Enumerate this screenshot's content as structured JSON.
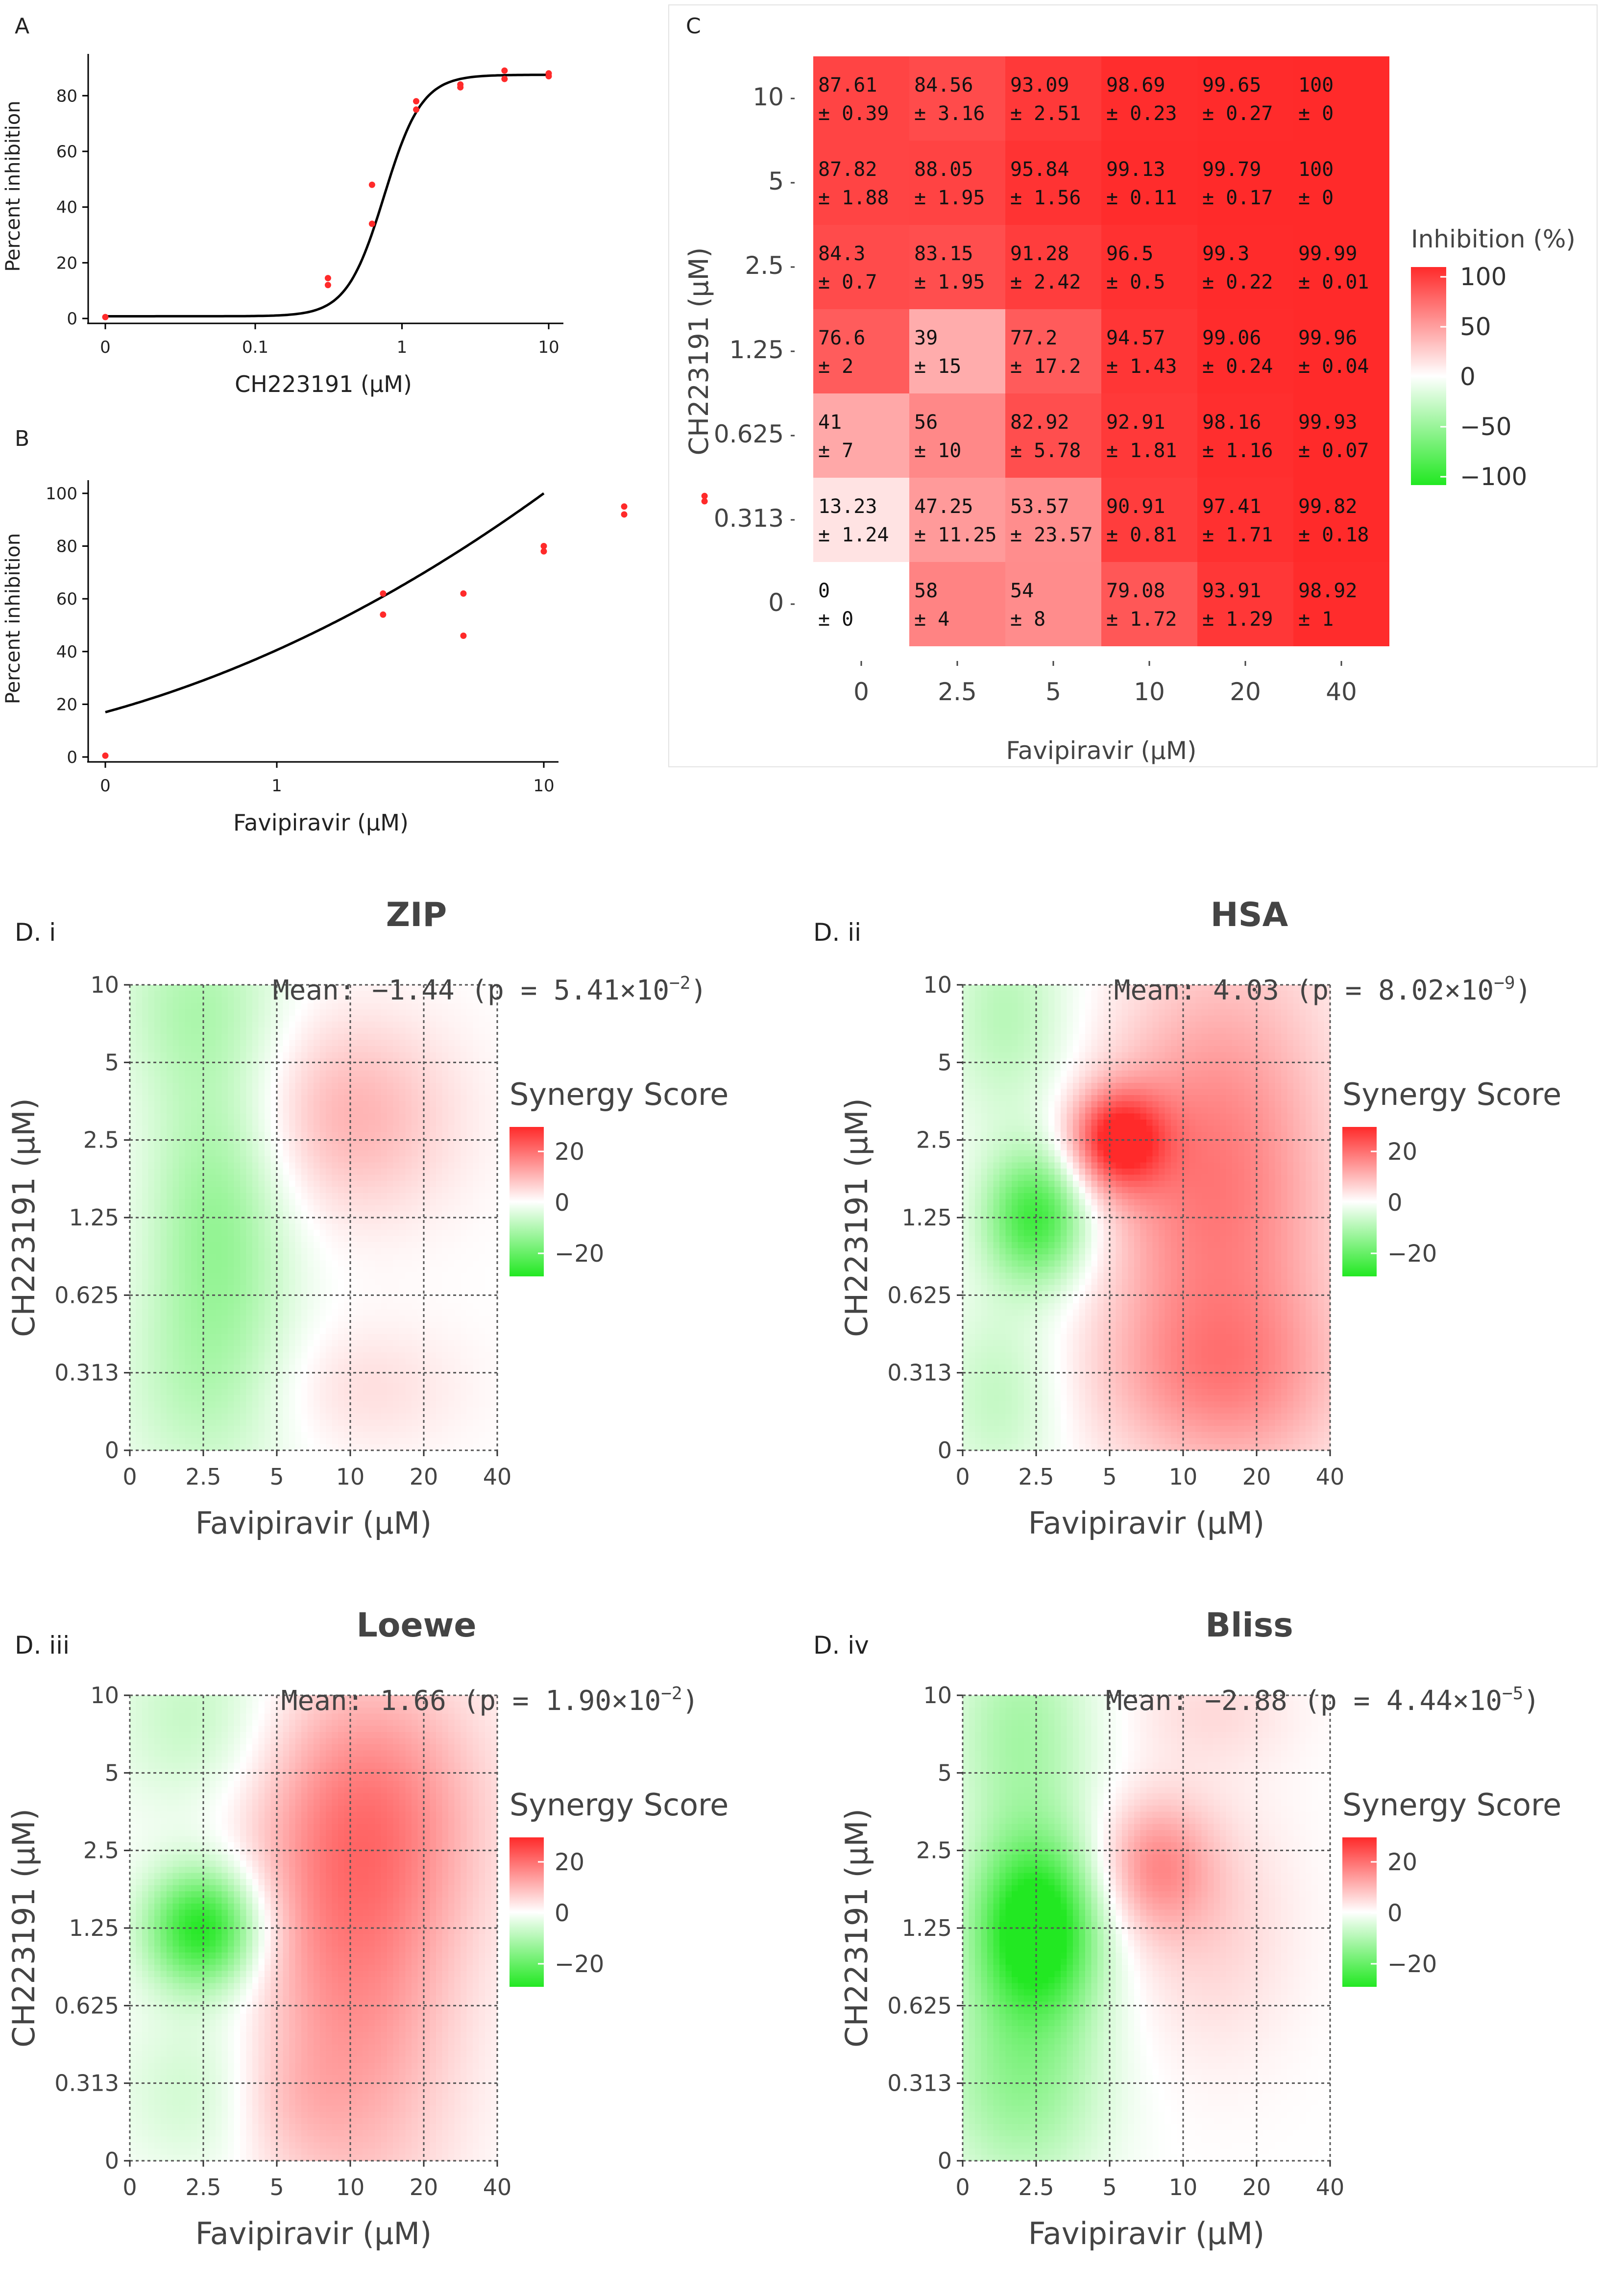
{
  "labels": {
    "A": "A",
    "B": "B",
    "C": "C",
    "Di": "D. i",
    "Dii": "D. ii",
    "Diii": "D. iii",
    "Div": "D. iv"
  },
  "colors": {
    "red": "#ff2a2a",
    "green": "#22e822",
    "curve": "#000000",
    "grid": "#555555"
  },
  "chart_data": [
    {
      "id": "A",
      "type": "scatter",
      "xlabel": "CH223191 (µM)",
      "ylabel": "Percent inhibition",
      "x_scale": "log",
      "x_ticks": [
        "0",
        "0.1",
        "1",
        "10"
      ],
      "y_ticks": [
        "0",
        "20",
        "40",
        "60",
        "80"
      ],
      "points": [
        {
          "x": 0,
          "y": 0.5
        },
        {
          "x": 0.313,
          "y": 12
        },
        {
          "x": 0.313,
          "y": 14.5
        },
        {
          "x": 0.625,
          "y": 34
        },
        {
          "x": 0.625,
          "y": 48
        },
        {
          "x": 1.25,
          "y": 75
        },
        {
          "x": 1.25,
          "y": 78
        },
        {
          "x": 2.5,
          "y": 83
        },
        {
          "x": 2.5,
          "y": 84
        },
        {
          "x": 5,
          "y": 86
        },
        {
          "x": 5,
          "y": 89
        },
        {
          "x": 10,
          "y": 87
        },
        {
          "x": 10,
          "y": 88
        }
      ],
      "fit": {
        "bottom": 0.8,
        "top": 87.5,
        "ec50": 0.65,
        "hill": 3.2
      }
    },
    {
      "id": "B",
      "type": "scatter",
      "xlabel": "Favipiravir (µM)",
      "ylabel": "Percent inhibition",
      "x_scale": "log",
      "x_ticks": [
        "0",
        "1",
        "10"
      ],
      "y_ticks": [
        "0",
        "20",
        "40",
        "60",
        "80",
        "100"
      ],
      "points": [
        {
          "x": 0,
          "y": 0.5
        },
        {
          "x": 2.5,
          "y": 54
        },
        {
          "x": 2.5,
          "y": 62
        },
        {
          "x": 5,
          "y": 46
        },
        {
          "x": 5,
          "y": 62
        },
        {
          "x": 10,
          "y": 78
        },
        {
          "x": 10,
          "y": 80
        },
        {
          "x": 20,
          "y": 92
        },
        {
          "x": 20,
          "y": 95
        },
        {
          "x": 40,
          "y": 97
        },
        {
          "x": 40,
          "y": 99
        }
      ],
      "fit": {
        "at_x0": 17,
        "at_x40": 100
      }
    },
    {
      "id": "C",
      "type": "heatmap",
      "xlabel": "Favipiravir (µM)",
      "ylabel": "CH223191 (µM)",
      "x_categories": [
        "0",
        "2.5",
        "5",
        "10",
        "20",
        "40"
      ],
      "y_categories": [
        "10",
        "5",
        "2.5",
        "1.25",
        "0.625",
        "0.313",
        "0"
      ],
      "legend_title": "Inhibition (%)",
      "legend_ticks": [
        "100",
        "50",
        "0",
        "−50",
        "−100"
      ],
      "cells": [
        [
          [
            "87.61",
            "± 0.39"
          ],
          [
            "84.56",
            "± 3.16"
          ],
          [
            "93.09",
            "± 2.51"
          ],
          [
            "98.69",
            "± 0.23"
          ],
          [
            "99.65",
            "± 0.27"
          ],
          [
            "100",
            "± 0"
          ]
        ],
        [
          [
            "87.82",
            "± 1.88"
          ],
          [
            "88.05",
            "± 1.95"
          ],
          [
            "95.84",
            "± 1.56"
          ],
          [
            "99.13",
            "± 0.11"
          ],
          [
            "99.79",
            "± 0.17"
          ],
          [
            "100",
            "± 0"
          ]
        ],
        [
          [
            "84.3",
            "± 0.7"
          ],
          [
            "83.15",
            "± 1.95"
          ],
          [
            "91.28",
            "± 2.42"
          ],
          [
            "96.5",
            "± 0.5"
          ],
          [
            "99.3",
            "± 0.22"
          ],
          [
            "99.99",
            "± 0.01"
          ]
        ],
        [
          [
            "76.6",
            "± 2"
          ],
          [
            "39",
            "± 15"
          ],
          [
            "77.2",
            "± 17.2"
          ],
          [
            "94.57",
            "± 1.43"
          ],
          [
            "99.06",
            "± 0.24"
          ],
          [
            "99.96",
            "± 0.04"
          ]
        ],
        [
          [
            "41",
            "± 7"
          ],
          [
            "56",
            "± 10"
          ],
          [
            "82.92",
            "± 5.78"
          ],
          [
            "92.91",
            "± 1.81"
          ],
          [
            "98.16",
            "± 1.16"
          ],
          [
            "99.93",
            "± 0.07"
          ]
        ],
        [
          [
            "13.23",
            "± 1.24"
          ],
          [
            "47.25",
            "± 11.25"
          ],
          [
            "53.57",
            "± 23.57"
          ],
          [
            "90.91",
            "± 0.81"
          ],
          [
            "97.41",
            "± 1.71"
          ],
          [
            "99.82",
            "± 0.18"
          ]
        ],
        [
          [
            "0",
            "± 0"
          ],
          [
            "58",
            "± 4"
          ],
          [
            "54",
            "± 8"
          ],
          [
            "79.08",
            "± 1.72"
          ],
          [
            "93.91",
            "± 1.29"
          ],
          [
            "98.92",
            "± 1"
          ]
        ]
      ]
    },
    {
      "id": "Di",
      "type": "heatmap",
      "title": "ZIP",
      "mean_text": "Mean: −1.44 (p = 5.41×10",
      "mean_exp": "−2",
      "mean_close": ")",
      "xlabel": "Favipiravir (µM)",
      "ylabel": "CH223191 (µM)",
      "x_ticks": [
        "0",
        "2.5",
        "5",
        "10",
        "20",
        "40"
      ],
      "y_ticks": [
        "10",
        "5",
        "2.5",
        "1.25",
        "0.625",
        "0.313",
        "0"
      ],
      "legend_title": "Synergy Score",
      "legend_ticks": [
        "20",
        "0",
        "−20"
      ],
      "blobs": [
        {
          "x": 1.2,
          "y": 3.0,
          "v": -12,
          "sx": 0.7,
          "sy": 1.4
        },
        {
          "x": 0.9,
          "y": 5.8,
          "v": -8,
          "sx": 0.8,
          "sy": 0.9
        },
        {
          "x": 1.0,
          "y": 0.7,
          "v": -6,
          "sx": 0.9,
          "sy": 1.0
        },
        {
          "x": 3.0,
          "y": 4.3,
          "v": 9,
          "sx": 1.0,
          "sy": 0.9
        },
        {
          "x": 3.1,
          "y": 0.8,
          "v": 4,
          "sx": 1.0,
          "sy": 0.6
        }
      ]
    },
    {
      "id": "Dii",
      "type": "heatmap",
      "title": "HSA",
      "mean_text": "Mean: 4.03 (p = 8.02×10",
      "mean_exp": "−9",
      "mean_close": ")",
      "xlabel": "Favipiravir (µM)",
      "ylabel": "CH223191 (µM)",
      "x_ticks": [
        "0",
        "2.5",
        "5",
        "10",
        "20",
        "40"
      ],
      "y_ticks": [
        "10",
        "5",
        "2.5",
        "1.25",
        "0.625",
        "0.313",
        "0"
      ],
      "legend_title": "Synergy Score",
      "legend_ticks": [
        "20",
        "0",
        "−20"
      ],
      "blobs": [
        {
          "x": 1.0,
          "y": 3.0,
          "v": -22,
          "sx": 0.5,
          "sy": 0.6
        },
        {
          "x": 0.6,
          "y": 5.6,
          "v": -8,
          "sx": 0.6,
          "sy": 1.0
        },
        {
          "x": 0.5,
          "y": 0.7,
          "v": -7,
          "sx": 0.6,
          "sy": 0.9
        },
        {
          "x": 2.1,
          "y": 4.0,
          "v": 24,
          "sx": 0.45,
          "sy": 0.45
        },
        {
          "x": 3.1,
          "y": 3.5,
          "v": 12,
          "sx": 0.9,
          "sy": 1.8
        },
        {
          "x": 3.4,
          "y": 0.9,
          "v": 9,
          "sx": 1.2,
          "sy": 0.8
        },
        {
          "x": 4.2,
          "y": 3.2,
          "v": 7,
          "sx": 0.9,
          "sy": 2.5
        }
      ]
    },
    {
      "id": "Diii",
      "type": "heatmap",
      "title": "Loewe",
      "mean_text": "Mean: 1.66 (p = 1.90×10",
      "mean_exp": "−2",
      "mean_close": ")",
      "xlabel": "Favipiravir (µM)",
      "ylabel": "CH223191 (µM)",
      "x_ticks": [
        "0",
        "2.5",
        "5",
        "10",
        "20",
        "40"
      ],
      "y_ticks": [
        "10",
        "5",
        "2.5",
        "1.25",
        "0.625",
        "0.313",
        "0"
      ],
      "legend_title": "Synergy Score",
      "legend_ticks": [
        "20",
        "0",
        "−20"
      ],
      "blobs": [
        {
          "x": 1.0,
          "y": 3.0,
          "v": -26,
          "sx": 0.55,
          "sy": 0.55
        },
        {
          "x": 0.9,
          "y": 5.7,
          "v": -7,
          "sx": 0.8,
          "sy": 0.9
        },
        {
          "x": 1.2,
          "y": 0.9,
          "v": -7,
          "sx": 0.9,
          "sy": 0.8
        },
        {
          "x": 3.0,
          "y": 2.0,
          "v": 12,
          "sx": 1.0,
          "sy": 2.0
        },
        {
          "x": 3.3,
          "y": 4.5,
          "v": 12,
          "sx": 1.1,
          "sy": 1.3
        },
        {
          "x": 2.0,
          "y": 0.8,
          "v": 5,
          "sx": 0.6,
          "sy": 0.6
        }
      ]
    },
    {
      "id": "Div",
      "type": "heatmap",
      "title": "Bliss",
      "mean_text": "Mean: −2.88 (p = 4.44×10",
      "mean_exp": "−5",
      "mean_close": ")",
      "xlabel": "Favipiravir (µM)",
      "ylabel": "CH223191 (µM)",
      "x_ticks": [
        "0",
        "2.5",
        "5",
        "10",
        "20",
        "40"
      ],
      "y_ticks": [
        "10",
        "5",
        "2.5",
        "1.25",
        "0.625",
        "0.313",
        "0"
      ],
      "legend_title": "Synergy Score",
      "legend_ticks": [
        "20",
        "0",
        "−20"
      ],
      "blobs": [
        {
          "x": 1.0,
          "y": 3.0,
          "v": -30,
          "sx": 0.6,
          "sy": 0.8
        },
        {
          "x": 0.8,
          "y": 5.5,
          "v": -10,
          "sx": 0.7,
          "sy": 1.1
        },
        {
          "x": 0.8,
          "y": 1.0,
          "v": -12,
          "sx": 0.8,
          "sy": 1.0
        },
        {
          "x": 2.6,
          "y": 3.8,
          "v": 12,
          "sx": 0.55,
          "sy": 0.6
        },
        {
          "x": 3.4,
          "y": 3.0,
          "v": 5,
          "sx": 0.8,
          "sy": 1.2
        },
        {
          "x": 3.4,
          "y": 5.8,
          "v": 4,
          "sx": 0.8,
          "sy": 0.5
        }
      ]
    }
  ]
}
